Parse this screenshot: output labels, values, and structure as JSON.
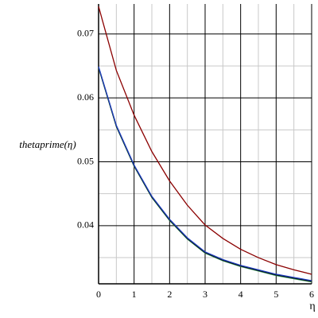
{
  "chart_data": {
    "type": "line",
    "xlabel": "η",
    "ylabel": "thetaprime(η)",
    "x": [
      0,
      0.5,
      1,
      1.5,
      2,
      2.5,
      3,
      3.5,
      4,
      4.5,
      5,
      5.5,
      6
    ],
    "series": [
      {
        "color": "#8b0000",
        "values": [
          0.0743,
          0.0643,
          0.0573,
          0.0516,
          0.047,
          0.0432,
          0.0401,
          0.038,
          0.0363,
          0.035,
          0.0339,
          0.0331,
          0.0324
        ]
      },
      {
        "color": "#2e8b57",
        "values": [
          0.0647,
          0.0555,
          0.0493,
          0.0444,
          0.0408,
          0.0379,
          0.0357,
          0.0345,
          0.0336,
          0.0329,
          0.0322,
          0.0317,
          0.0312
        ]
      },
      {
        "color": "#000000",
        "values": [
          0.0648,
          0.0556,
          0.0494,
          0.0445,
          0.0409,
          0.038,
          0.0358,
          0.0346,
          0.0337,
          0.033,
          0.0323,
          0.0318,
          0.0313
        ]
      },
      {
        "color": "#1f3fbf",
        "values": [
          0.0649,
          0.0557,
          0.0495,
          0.0446,
          0.041,
          0.0381,
          0.0359,
          0.0347,
          0.0338,
          0.0331,
          0.0324,
          0.0319,
          0.0314
        ]
      }
    ],
    "xlim": [
      0,
      6
    ],
    "ylim": [
      0.0309,
      0.0747
    ],
    "xticks": [
      0,
      1,
      2,
      3,
      4,
      5,
      6
    ],
    "yticks": [
      0.04,
      0.05,
      0.06,
      0.07
    ],
    "xminorticks": [
      0.5,
      1.5,
      2.5,
      3.5,
      4.5,
      5.5
    ],
    "yminorticks": [
      0.035,
      0.045,
      0.055,
      0.065
    ],
    "grid": true
  }
}
